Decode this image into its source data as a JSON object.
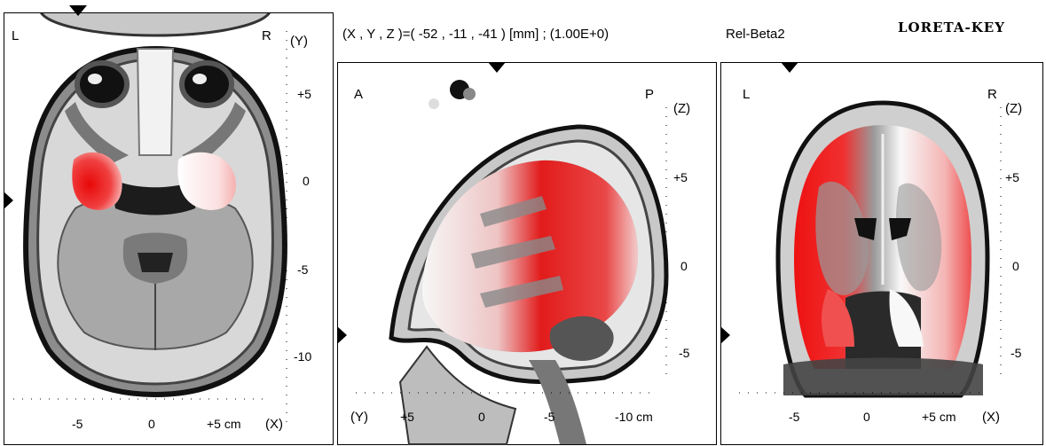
{
  "header": {
    "coords": "(X , Y , Z )=( -52 , -11 , -41 ) [mm]  ;  (1.00E+0)",
    "band": "Rel-Beta2",
    "brand": "LORETA-KEY"
  },
  "axial": {
    "left": "L",
    "right": "R",
    "axis_v": "(Y)",
    "axis_h": "(X)",
    "yticks": [
      "+5",
      "0",
      "-5",
      "-10"
    ],
    "xticks": [
      "-5",
      "0",
      "+5 cm"
    ]
  },
  "sagittal": {
    "left": "A",
    "right": "P",
    "axis_v": "(Z)",
    "axis_h": "(Y)",
    "yticks": [
      "+5",
      "0",
      "-5"
    ],
    "xticks": [
      "+5",
      "0",
      "-5",
      "-10 cm"
    ]
  },
  "coronal": {
    "left": "L",
    "right": "R",
    "axis_v": "(Z)",
    "axis_h": "(X)",
    "yticks": [
      "+5",
      "0",
      "-5"
    ],
    "xticks": [
      "-5",
      "0",
      "+5 cm"
    ]
  },
  "colors": {
    "activation": "#ee1111",
    "tissue": "#9a9a9a",
    "bone": "#1a1a1a"
  }
}
